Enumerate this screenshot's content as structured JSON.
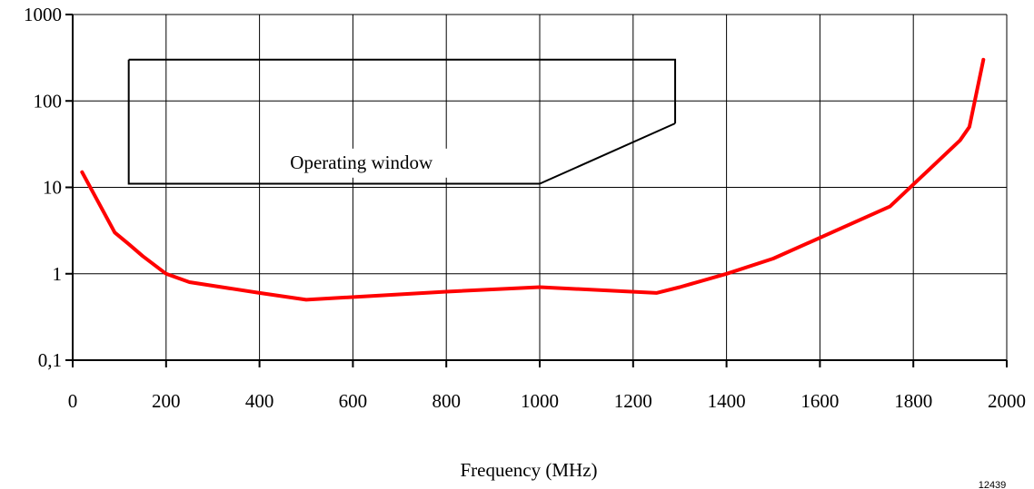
{
  "chart_data": {
    "type": "line",
    "title": "",
    "xlabel": "Frequency (MHz)",
    "ylabel": "",
    "xlim": [
      0,
      2000
    ],
    "ylim": [
      0.1,
      1000
    ],
    "y_scale": "log",
    "grid": true,
    "x_ticks": [
      0,
      200,
      400,
      600,
      800,
      1000,
      1200,
      1400,
      1600,
      1800,
      2000
    ],
    "x_tick_labels": [
      "0",
      "200",
      "400",
      "600",
      "800",
      "1000",
      "1200",
      "1400",
      "1600",
      "1800",
      "2000"
    ],
    "y_ticks": [
      0.1,
      1,
      10,
      100,
      1000
    ],
    "y_tick_labels": [
      "0,1",
      "1",
      "10",
      "100",
      "1000"
    ],
    "series": [
      {
        "color": "#ff0000",
        "x": [
          20,
          90,
          120,
          150,
          200,
          250,
          400,
          500,
          800,
          1000,
          1250,
          1300,
          1400,
          1500,
          1750,
          1900,
          1920,
          1950
        ],
        "y": [
          15,
          3,
          2.2,
          1.6,
          1.0,
          0.8,
          0.6,
          0.5,
          0.62,
          0.7,
          0.6,
          0.7,
          1.0,
          1.5,
          6,
          35,
          50,
          300
        ]
      }
    ],
    "annotations": [
      {
        "text": "Operating window",
        "label_at": [
          450,
          20
        ],
        "outline": {
          "x": [
            120,
            120,
            1000,
            1290
          ],
          "y": [
            300,
            11,
            11,
            55
          ],
          "top_y": 300,
          "right_x": 1290
        }
      }
    ],
    "figure_id": "12439"
  }
}
